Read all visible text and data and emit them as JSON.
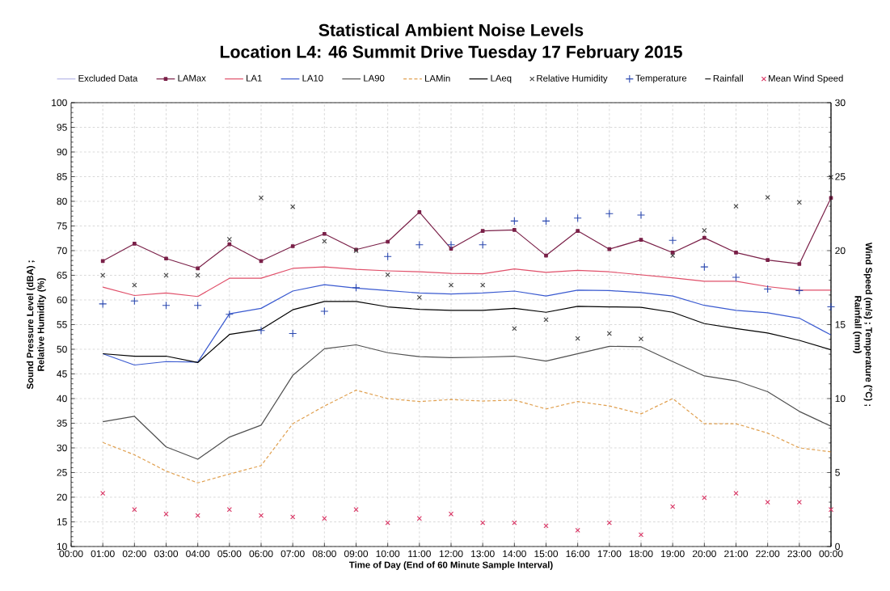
{
  "chart_data": {
    "type": "line",
    "title": "Statistical Ambient Noise Levels",
    "subtitle": "Location L4: 46 Summit Drive Tuesday 17 February 2015",
    "xlabel": "Time of Day (End of 60 Minute Sample Interval)",
    "ylabel": "Sound Pressure Level (dBA) ; Relative Humidity (%)",
    "y2label": "Wind Speed (m/s) ; Temperature (°C) ; Rainfall (mm)",
    "x": [
      1,
      2,
      3,
      4,
      5,
      6,
      7,
      8,
      9,
      10,
      11,
      12,
      13,
      14,
      15,
      16,
      17,
      18,
      19,
      20,
      21,
      22,
      23,
      24
    ],
    "xlim": [
      0,
      24
    ],
    "xticks": [
      {
        "value": 0,
        "label": "00:00"
      },
      {
        "value": 1,
        "label": "01:00"
      },
      {
        "value": 2,
        "label": "02:00"
      },
      {
        "value": 3,
        "label": "03:00"
      },
      {
        "value": 4,
        "label": "04:00"
      },
      {
        "value": 5,
        "label": "05:00"
      },
      {
        "value": 6,
        "label": "06:00"
      },
      {
        "value": 7,
        "label": "07:00"
      },
      {
        "value": 8,
        "label": "08:00"
      },
      {
        "value": 9,
        "label": "09:00"
      },
      {
        "value": 10,
        "label": "10:00"
      },
      {
        "value": 11,
        "label": "11:00"
      },
      {
        "value": 12,
        "label": "12:00"
      },
      {
        "value": 13,
        "label": "13:00"
      },
      {
        "value": 14,
        "label": "14:00"
      },
      {
        "value": 15,
        "label": "15:00"
      },
      {
        "value": 16,
        "label": "16:00"
      },
      {
        "value": 17,
        "label": "17:00"
      },
      {
        "value": 18,
        "label": "18:00"
      },
      {
        "value": 19,
        "label": "19:00"
      },
      {
        "value": 20,
        "label": "20:00"
      },
      {
        "value": 21,
        "label": "21:00"
      },
      {
        "value": 22,
        "label": "22:00"
      },
      {
        "value": 23,
        "label": "23:00"
      },
      {
        "value": 24,
        "label": "00:00"
      }
    ],
    "ylim": [
      10,
      100
    ],
    "yticks": [
      10,
      15,
      20,
      25,
      30,
      35,
      40,
      45,
      50,
      55,
      60,
      65,
      70,
      75,
      80,
      85,
      90,
      95,
      100
    ],
    "y2lim": [
      0,
      30
    ],
    "y2ticks": [
      0,
      5,
      10,
      15,
      20,
      25,
      30
    ],
    "grid": true,
    "legend": "top",
    "series": [
      {
        "name": "Excluded Data",
        "color": "#b8b8e8",
        "values": [
          null,
          null,
          null,
          null,
          null,
          null,
          null,
          null,
          null,
          null,
          null,
          null,
          null,
          null,
          null,
          null,
          null,
          null,
          null,
          null,
          null,
          null,
          null,
          null
        ]
      },
      {
        "name": "LAMax",
        "color": "#7a2048",
        "marker": "square",
        "values": [
          67.9,
          71.4,
          68.4,
          66.4,
          71.3,
          67.9,
          70.9,
          73.4,
          70.2,
          71.8,
          77.8,
          70.4,
          74.0,
          74.2,
          69.0,
          74.0,
          70.3,
          72.2,
          69.6,
          72.6,
          69.6,
          68.1,
          67.3,
          80.7
        ]
      },
      {
        "name": "LA1",
        "color": "#e0506a",
        "values": [
          62.6,
          60.9,
          61.4,
          60.7,
          64.4,
          64.4,
          66.4,
          66.7,
          66.2,
          65.9,
          65.7,
          65.4,
          65.3,
          66.3,
          65.6,
          66.0,
          65.7,
          65.1,
          64.5,
          63.8,
          63.8,
          62.7,
          62.0,
          62.0
        ]
      },
      {
        "name": "LA10",
        "color": "#3a5ad0",
        "values": [
          49.1,
          46.8,
          47.5,
          47.4,
          57.2,
          58.3,
          61.8,
          63.1,
          62.4,
          61.9,
          61.4,
          61.2,
          61.4,
          61.8,
          60.8,
          62.0,
          61.9,
          61.5,
          60.8,
          58.9,
          57.9,
          57.4,
          56.3,
          52.9
        ]
      },
      {
        "name": "LA90",
        "color": "#505050",
        "values": [
          35.3,
          36.4,
          30.2,
          27.7,
          32.2,
          34.6,
          44.7,
          50.1,
          50.9,
          49.3,
          48.5,
          48.3,
          48.4,
          48.6,
          47.6,
          49.1,
          50.6,
          50.5,
          47.5,
          44.6,
          43.6,
          41.4,
          37.4,
          34.4
        ]
      },
      {
        "name": "LAMin",
        "color": "#e0a050",
        "line_style": "dashed",
        "values": [
          31.1,
          28.6,
          25.3,
          22.9,
          24.7,
          26.4,
          34.9,
          38.5,
          41.7,
          40.0,
          39.4,
          39.8,
          39.5,
          39.7,
          37.9,
          39.4,
          38.5,
          36.9,
          40.0,
          34.9,
          34.9,
          33.0,
          30.0,
          29.2
        ]
      },
      {
        "name": "LAeq",
        "color": "#000000",
        "values": [
          49.1,
          48.6,
          48.6,
          47.3,
          53.0,
          54.0,
          58.0,
          59.7,
          59.7,
          58.6,
          58.1,
          57.9,
          57.9,
          58.3,
          57.5,
          58.7,
          58.6,
          58.5,
          57.5,
          55.2,
          54.2,
          53.3,
          51.8,
          49.9
        ]
      },
      {
        "name": "Relative Humidity",
        "type": "scatter",
        "color": "#404040",
        "marker": "cross",
        "values": [
          65.0,
          63.0,
          65.0,
          65.0,
          72.3,
          80.7,
          78.9,
          71.9,
          70.0,
          65.1,
          60.5,
          63.0,
          63.0,
          54.2,
          56.0,
          52.2,
          53.2,
          52.1,
          69.0,
          74.1,
          79.0,
          80.8,
          79.8,
          84.9
        ]
      },
      {
        "name": "Temperature",
        "type": "scatter",
        "axis": "y2",
        "color": "#2a48b0",
        "marker": "plus",
        "values": [
          16.4,
          16.6,
          16.3,
          16.3,
          15.7,
          14.6,
          14.4,
          15.9,
          17.5,
          19.6,
          20.4,
          20.4,
          20.4,
          22.0,
          22.0,
          22.2,
          22.5,
          22.4,
          20.7,
          18.9,
          18.2,
          17.4,
          17.3,
          16.2
        ]
      },
      {
        "name": "Rainfall",
        "type": "scatter",
        "axis": "y2",
        "color": "#000000",
        "marker": "dash",
        "values": [
          null,
          null,
          null,
          null,
          null,
          null,
          null,
          null,
          null,
          null,
          null,
          null,
          null,
          null,
          null,
          null,
          null,
          null,
          null,
          null,
          null,
          null,
          null,
          null
        ]
      },
      {
        "name": "Mean Wind Speed",
        "type": "scatter",
        "axis": "y2",
        "color": "#d83060",
        "marker": "cross",
        "values": [
          3.6,
          2.5,
          2.2,
          2.1,
          2.5,
          2.1,
          2.0,
          1.9,
          2.5,
          1.6,
          1.9,
          2.2,
          1.6,
          1.6,
          1.4,
          1.1,
          1.6,
          0.8,
          2.7,
          3.3,
          3.6,
          3.0,
          3.0,
          2.5
        ]
      }
    ]
  }
}
